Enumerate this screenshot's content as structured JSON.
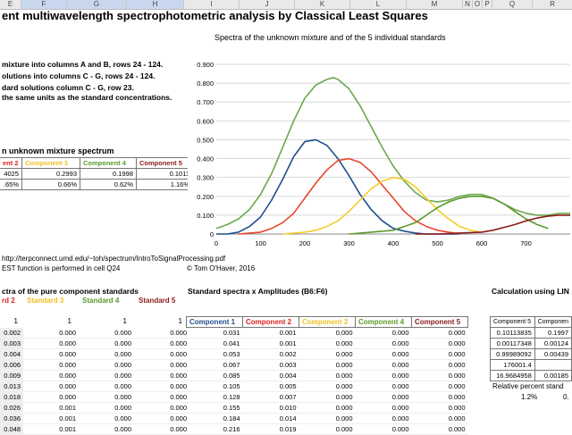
{
  "columns": [
    "E",
    "F",
    "G",
    "H",
    "I",
    "J",
    "K",
    "L",
    "M",
    "N",
    "O",
    "P",
    "Q",
    "R"
  ],
  "title": "ent multiwavelength spectrophotometric analysis by Classical Least Squares",
  "instructions": [
    "mixture into columns A and B, rows 24 - 124.",
    "olutions into columns C - G, rows 24 - 124.",
    "dard solutions column C - G, row 23.",
    " the same units as the standard concentrations."
  ],
  "mixture": {
    "heading": "n unknown mixture spectrum",
    "headers": [
      {
        "label": "ent 2",
        "color": "#e02020"
      },
      {
        "label": "Component 3",
        "color": "#f0c020"
      },
      {
        "label": "Component 4",
        "color": "#5a9a28"
      },
      {
        "label": "Component 5",
        "color": "#8b1a1a"
      }
    ],
    "rows": [
      [
        "4025",
        "0.2993",
        "0.1998",
        "0.1011"
      ],
      [
        ".65%",
        "0.66%",
        "0.62%",
        "1.16%"
      ]
    ]
  },
  "chart_data": {
    "type": "line",
    "title": "Spectra of the unknown mixture and of the 5 individual standards",
    "xlim": [
      0,
      800
    ],
    "ylim": [
      0,
      0.9
    ],
    "x_ticks": [
      "0",
      "100",
      "200",
      "300",
      "400",
      "500",
      "600",
      "700"
    ],
    "y_ticks": [
      "0",
      "0.100",
      "0.200",
      "0.300",
      "0.400",
      "0.500",
      "0.600",
      "0.700",
      "0.800",
      "0.900"
    ],
    "series": [
      {
        "color": "#6aa84f",
        "x": [
          0,
          25,
          50,
          75,
          100,
          125,
          150,
          175,
          200,
          225,
          250,
          265,
          275,
          300,
          325,
          350,
          375,
          400,
          425,
          450,
          475,
          500,
          525,
          550,
          575,
          600,
          625,
          650,
          675,
          700,
          725,
          750,
          775,
          800
        ],
        "y": [
          0.03,
          0.05,
          0.08,
          0.13,
          0.21,
          0.32,
          0.46,
          0.6,
          0.72,
          0.79,
          0.82,
          0.83,
          0.82,
          0.77,
          0.68,
          0.57,
          0.46,
          0.36,
          0.28,
          0.22,
          0.18,
          0.17,
          0.18,
          0.2,
          0.21,
          0.21,
          0.19,
          0.16,
          0.13,
          0.11,
          0.1,
          0.1,
          0.11,
          0.11
        ]
      },
      {
        "color": "#1f4e8c",
        "x": [
          0,
          25,
          50,
          75,
          100,
          125,
          150,
          175,
          200,
          225,
          250,
          275,
          300,
          325,
          350,
          375,
          400,
          425,
          450,
          475,
          500,
          525,
          550
        ],
        "y": [
          0.0,
          0.0,
          0.01,
          0.04,
          0.09,
          0.18,
          0.29,
          0.41,
          0.49,
          0.5,
          0.47,
          0.4,
          0.31,
          0.21,
          0.13,
          0.07,
          0.03,
          0.015,
          0.005,
          0.0,
          0.0,
          0.0,
          0.0
        ]
      },
      {
        "color": "#e8452c",
        "x": [
          50,
          100,
          125,
          150,
          175,
          200,
          225,
          250,
          275,
          300,
          325,
          350,
          375,
          400,
          425,
          450,
          475,
          500,
          525,
          550
        ],
        "y": [
          0.0,
          0.01,
          0.03,
          0.06,
          0.11,
          0.19,
          0.27,
          0.34,
          0.39,
          0.4,
          0.38,
          0.33,
          0.26,
          0.19,
          0.12,
          0.07,
          0.04,
          0.02,
          0.01,
          0.0
        ]
      },
      {
        "color": "#f5cd29",
        "x": [
          150,
          200,
          225,
          250,
          275,
          300,
          325,
          350,
          375,
          400,
          425,
          450,
          475,
          500,
          525,
          550,
          575,
          600
        ],
        "y": [
          0.0,
          0.01,
          0.02,
          0.04,
          0.07,
          0.12,
          0.18,
          0.24,
          0.28,
          0.3,
          0.29,
          0.25,
          0.19,
          0.13,
          0.08,
          0.04,
          0.02,
          0.01
        ]
      },
      {
        "color": "#5b9a2c",
        "x": [
          300,
          350,
          400,
          425,
          450,
          475,
          500,
          525,
          550,
          575,
          600,
          625,
          650,
          675,
          700,
          725,
          750
        ],
        "y": [
          0.0,
          0.01,
          0.02,
          0.04,
          0.06,
          0.1,
          0.14,
          0.17,
          0.19,
          0.2,
          0.2,
          0.19,
          0.16,
          0.12,
          0.08,
          0.05,
          0.03
        ]
      },
      {
        "color": "#8b1a1a",
        "x": [
          450,
          500,
          550,
          600,
          625,
          650,
          675,
          700,
          725,
          750,
          775,
          800
        ],
        "y": [
          0.0,
          0.0,
          0.005,
          0.01,
          0.02,
          0.035,
          0.05,
          0.07,
          0.085,
          0.095,
          0.1,
          0.1
        ]
      }
    ]
  },
  "links": {
    "url": "http://terpconnect.umd.edu/~toh/spectrum/IntroToSignalProcessing.pdf",
    "note": "EST function is performed in cell Q24",
    "copyright": "© Tom O'Haver, 2016"
  },
  "pure": {
    "heading": "ctra of the pure component standards",
    "headers": [
      {
        "label": "rd 2",
        "color": "#e02020"
      },
      {
        "label": "Standard 3",
        "color": "#f0c020"
      },
      {
        "label": "Standard 4",
        "color": "#5a9a28"
      },
      {
        "label": "Standard 5",
        "color": "#8b1a1a"
      }
    ],
    "ones": [
      "1",
      "1",
      "1",
      "1"
    ],
    "rows": [
      [
        "0.002",
        "0.000",
        "0.000",
        "0.000"
      ],
      [
        "0.003",
        "0.000",
        "0.000",
        "0.000"
      ],
      [
        "0.004",
        "0.000",
        "0.000",
        "0.000"
      ],
      [
        "0.006",
        "0.000",
        "0.000",
        "0.000"
      ],
      [
        "0.009",
        "0.000",
        "0.000",
        "0.000"
      ],
      [
        "0.013",
        "0.000",
        "0.000",
        "0.000"
      ],
      [
        "0.018",
        "0.000",
        "0.000",
        "0.000"
      ],
      [
        "0.026",
        "0.001",
        "0.000",
        "0.000"
      ],
      [
        "0.036",
        "0.001",
        "0.000",
        "0.000"
      ],
      [
        "0.048",
        "0.001",
        "0.000",
        "0.000"
      ]
    ]
  },
  "amp": {
    "heading": "Standard spectra x Amplitudes (B6:F6)",
    "headers": [
      {
        "label": "Component 1",
        "color": "#1f4e8c"
      },
      {
        "label": "Component 2",
        "color": "#e02020"
      },
      {
        "label": "Component 3",
        "color": "#f0c020"
      },
      {
        "label": "Component 4",
        "color": "#5a9a28"
      },
      {
        "label": "Component 5",
        "color": "#8b1a1a"
      }
    ],
    "rows": [
      [
        "0.031",
        "0.001",
        "0.000",
        "0.000",
        "0.000"
      ],
      [
        "0.041",
        "0.001",
        "0.000",
        "0.000",
        "0.000"
      ],
      [
        "0.053",
        "0.002",
        "0.000",
        "0.000",
        "0.000"
      ],
      [
        "0.067",
        "0.003",
        "0.000",
        "0.000",
        "0.000"
      ],
      [
        "0.085",
        "0.004",
        "0.000",
        "0.000",
        "0.000"
      ],
      [
        "0.105",
        "0.005",
        "0.000",
        "0.000",
        "0.000"
      ],
      [
        "0.128",
        "0.007",
        "0.000",
        "0.000",
        "0.000"
      ],
      [
        "0.155",
        "0.010",
        "0.000",
        "0.000",
        "0.000"
      ],
      [
        "0.184",
        "0.014",
        "0.000",
        "0.000",
        "0.000"
      ],
      [
        "0.216",
        "0.019",
        "0.000",
        "0.000",
        "0.000"
      ]
    ]
  },
  "calc": {
    "heading": "Calculation using LIN",
    "headers": [
      "Component 5",
      "Componen"
    ],
    "rows": [
      [
        "0.10113835",
        "0.1997"
      ],
      [
        "0.00117348",
        "0.00124"
      ],
      [
        "0.99989092",
        "0.00439"
      ],
      [
        "176001.4",
        ""
      ],
      [
        "16.9684958",
        "0.00185"
      ]
    ],
    "rel_label": "Relative percent stand",
    "rel_values": [
      "1.2%",
      "0."
    ]
  }
}
